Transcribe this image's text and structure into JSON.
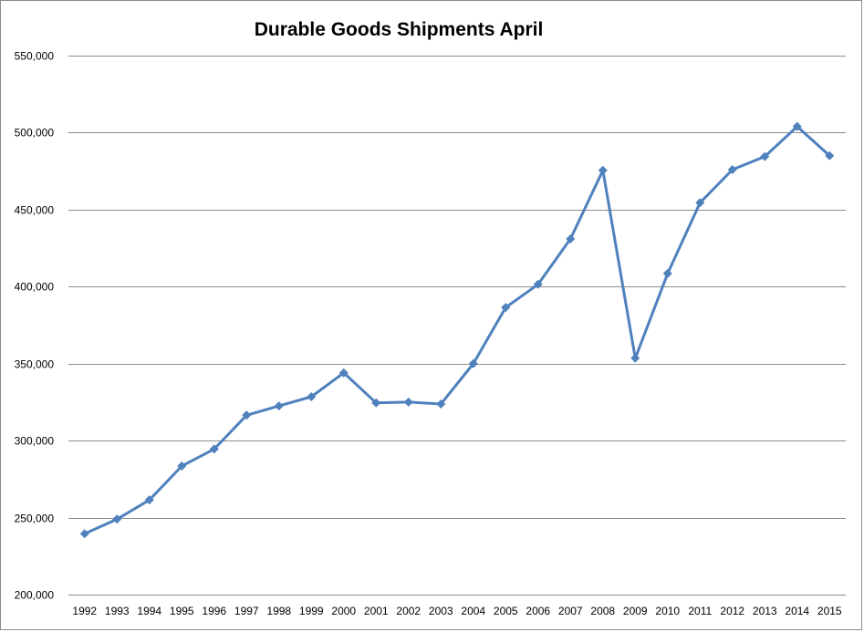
{
  "chart_data": {
    "type": "line",
    "title": "Durable Goods Shipments April",
    "xlabel": "",
    "ylabel": "",
    "ylim": [
      200000,
      550000
    ],
    "yticks": [
      "200,000",
      "250,000",
      "300,000",
      "350,000",
      "400,000",
      "450,000",
      "500,000",
      "550,000"
    ],
    "ytick_values": [
      200000,
      250000,
      300000,
      350000,
      400000,
      450000,
      500000,
      550000
    ],
    "grid": true,
    "legend": "none",
    "categories": [
      "1992",
      "1993",
      "1994",
      "1995",
      "1996",
      "1997",
      "1998",
      "1999",
      "2000",
      "2001",
      "2002",
      "2003",
      "2004",
      "2005",
      "2006",
      "2007",
      "2008",
      "2009",
      "2010",
      "2011",
      "2012",
      "2013",
      "2014",
      "2015"
    ],
    "series": [
      {
        "color": "#4f81bd",
        "values": [
          239500,
          249000,
          261500,
          283500,
          294500,
          316500,
          322500,
          328500,
          344000,
          324500,
          325000,
          323800,
          350000,
          386500,
          401500,
          431000,
          475500,
          353500,
          408500,
          454500,
          476000,
          484500,
          504000,
          485000
        ]
      }
    ]
  }
}
